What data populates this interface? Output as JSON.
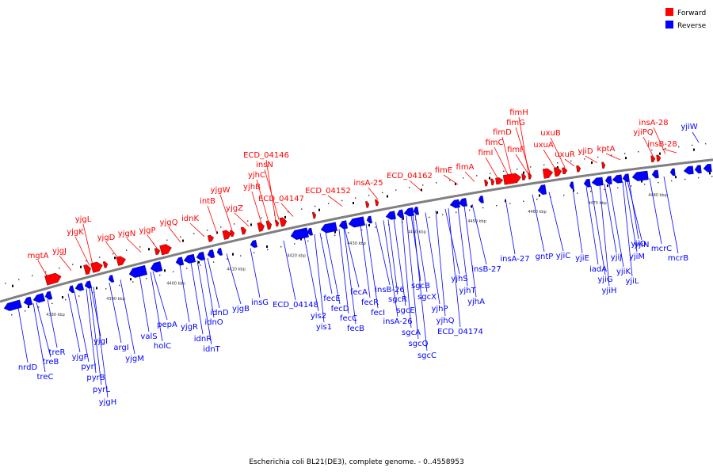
{
  "caption": "Escherichia coli BL21(DE3), complete genome. - 0..4558953",
  "legend": [
    {
      "label": "Forward",
      "color": "#ff0000"
    },
    {
      "label": "Reverse",
      "color": "#0000ff"
    }
  ],
  "colors": {
    "forward": "#ff0000",
    "reverse": "#0000ff",
    "backbone": "#808080"
  },
  "ticks": [
    "4380 kbp",
    "4390 kbp",
    "4400 kbp",
    "4410 kbp",
    "4420 kbp",
    "4430 kbp",
    "4440 kbp",
    "4450 kbp",
    "4460 kbp",
    "4470 kbp",
    "4480 kbp"
  ],
  "forward_labels": [
    "mgtA",
    "yjgJ",
    "yjgK",
    "yjgL",
    "yjgD",
    "yjgN",
    "yjgP",
    "yjgQ",
    "idnK",
    "intB",
    "yjgW",
    "yjgZ",
    "yjhB",
    "yjhC",
    "insN",
    "ECD_04146",
    "ECD_04147",
    "ECD_04152",
    "insA-25",
    "ECD_04162",
    "fimE",
    "fimA",
    "fimI",
    "fimC",
    "fimD",
    "fimF",
    "fimG",
    "fimH",
    "uxuA",
    "uxuB",
    "uxuR",
    "yjiD",
    "kptA",
    "yjiPQ",
    "insA-28",
    "insB-28"
  ],
  "reverse_labels": [
    "nrdD",
    "treC",
    "treB",
    "treR",
    "yjgF",
    "pyrI",
    "pyrB",
    "pyrL",
    "yjgH",
    "yjgI",
    "argI",
    "yjgM",
    "valS",
    "holC",
    "pepA",
    "yjgR",
    "idnR",
    "idnT",
    "idnO",
    "idnD",
    "yjgB",
    "insG",
    "ECD_04148",
    "yis2",
    "yis1",
    "fecE",
    "fecD",
    "fecC",
    "fecB",
    "fecA",
    "fecR",
    "fecI",
    "insB-26",
    "sgcR",
    "sgcE",
    "insA-26",
    "sgcA",
    "sgcQ",
    "sgcC",
    "sgcB",
    "sgcX",
    "yjhP",
    "yjhQ",
    "ECD_04174",
    "yjhS",
    "yjhT",
    "yjhA",
    "insB-27",
    "insA-27",
    "gntP",
    "yjiC",
    "yjiE",
    "iadA",
    "yjiG",
    "yjiH",
    "yjiJ",
    "yjiK",
    "yjiL",
    "yjiM",
    "yjiN",
    "yjiO",
    "mcrC",
    "mcrB",
    "yjiW"
  ]
}
